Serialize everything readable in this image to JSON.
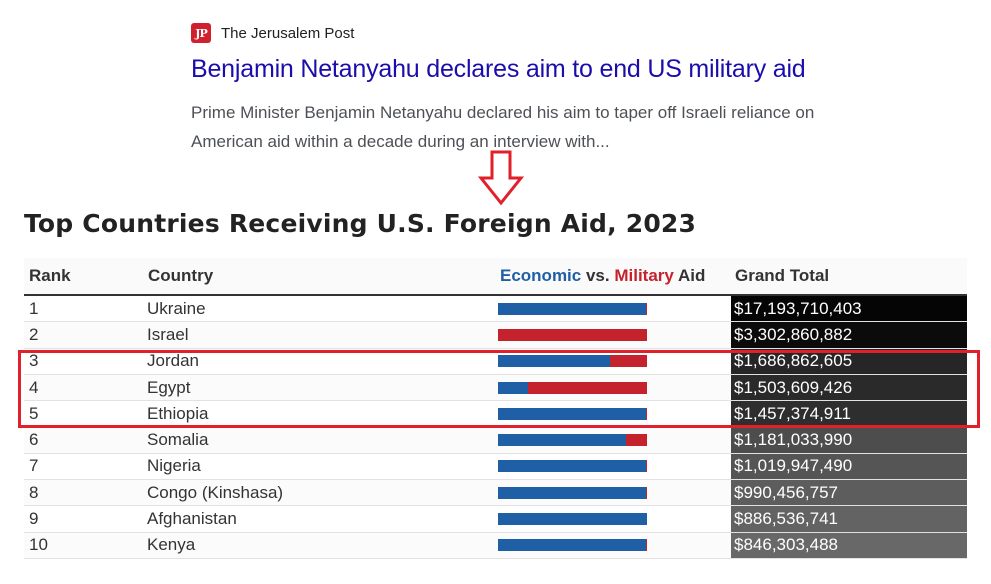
{
  "news": {
    "source_logo": "JP",
    "source_name": "The Jerusalem Post",
    "headline": "Benjamin Netanyahu declares aim to end US military aid",
    "snippet": "Prime Minister Benjamin Netanyahu declared his aim to taper off Israeli reliance on American aid within a decade during an interview with..."
  },
  "table": {
    "title": "Top Countries Receiving U.S. Foreign Aid, 2023",
    "headers": {
      "rank": "Rank",
      "country": "Country",
      "economic": "Economic",
      "vs": " vs. ",
      "military": "Military",
      "aid": " Aid",
      "total": "Grand Total"
    },
    "colors": {
      "economic": "#1f5fa5",
      "military": "#c4232e",
      "annotation": "#e0202a"
    },
    "rows": [
      {
        "rank": "1",
        "country": "Ukraine",
        "total": "$17,193,710,403",
        "economic_share": 0.99,
        "total_bg": "#050505"
      },
      {
        "rank": "2",
        "country": "Israel",
        "total": "$3,302,860,882",
        "economic_share": 0.0,
        "total_bg": "#0b0b0b"
      },
      {
        "rank": "3",
        "country": "Jordan",
        "total": "$1,686,862,605",
        "economic_share": 0.75,
        "total_bg": "#262626"
      },
      {
        "rank": "4",
        "country": "Egypt",
        "total": "$1,503,609,426",
        "economic_share": 0.2,
        "total_bg": "#2a2a2a"
      },
      {
        "rank": "5",
        "country": "Ethiopia",
        "total": "$1,457,374,911",
        "economic_share": 0.99,
        "total_bg": "#2e2e2e"
      },
      {
        "rank": "6",
        "country": "Somalia",
        "total": "$1,181,033,990",
        "economic_share": 0.86,
        "total_bg": "#4d4d4d"
      },
      {
        "rank": "7",
        "country": "Nigeria",
        "total": "$1,019,947,490",
        "economic_share": 0.99,
        "total_bg": "#555555"
      },
      {
        "rank": "8",
        "country": "Congo (Kinshasa)",
        "total": "$990,456,757",
        "economic_share": 0.99,
        "total_bg": "#5d5d5d"
      },
      {
        "rank": "9",
        "country": "Afghanistan",
        "total": "$886,536,741",
        "economic_share": 1.0,
        "total_bg": "#636363"
      },
      {
        "rank": "10",
        "country": "Kenya",
        "total": "$846,303,488",
        "economic_share": 0.99,
        "total_bg": "#686868"
      }
    ]
  }
}
